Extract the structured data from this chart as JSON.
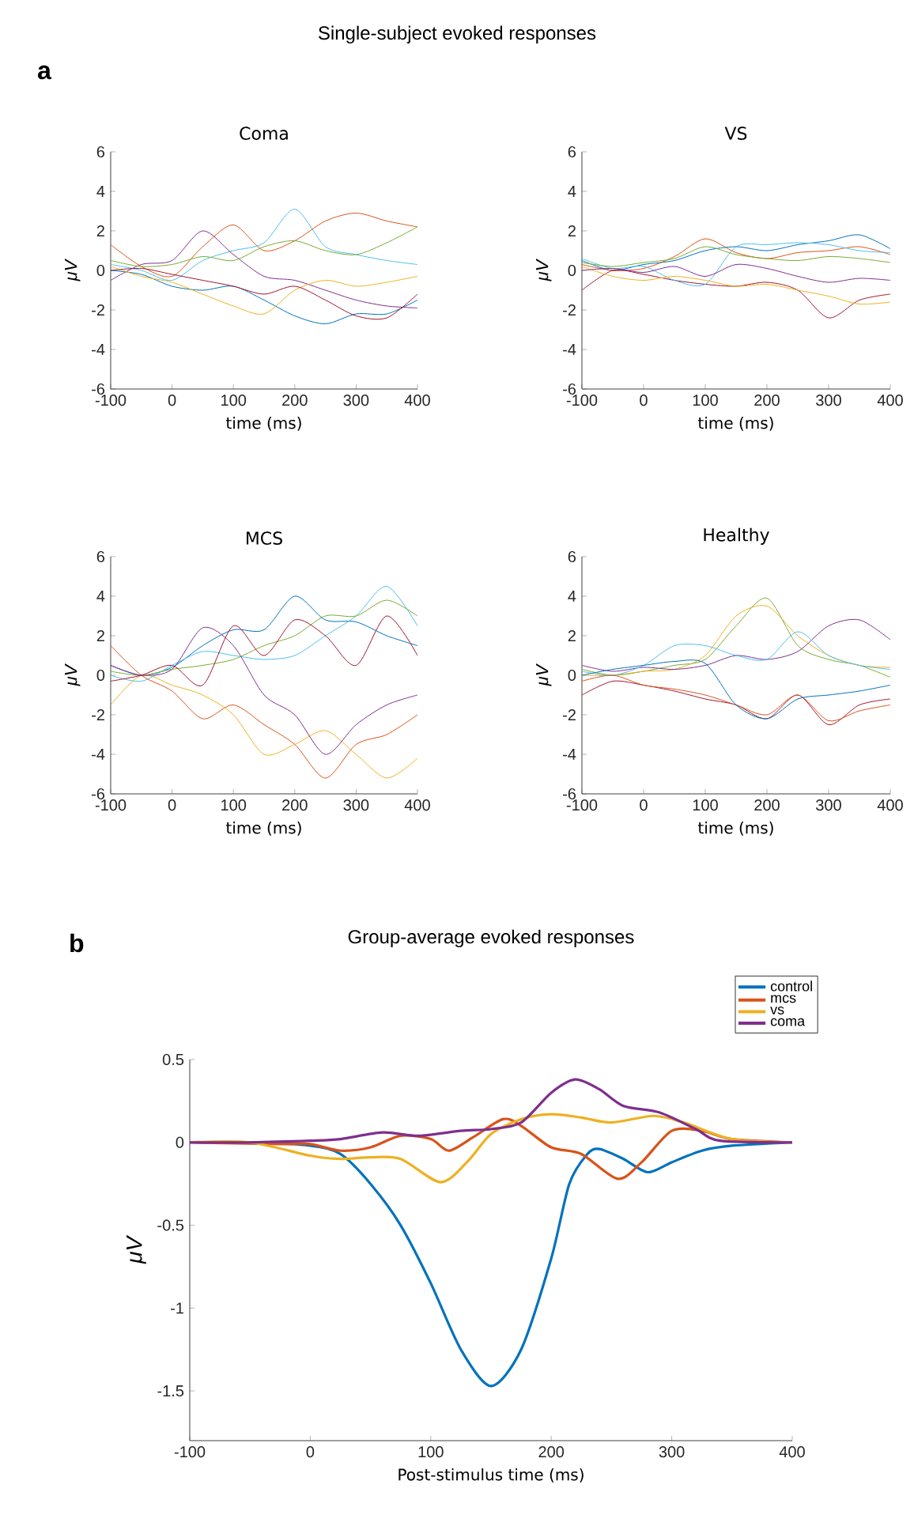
{
  "chart_data": [
    {
      "type": "line",
      "title": "Coma",
      "xlabel": "time (ms)",
      "ylabel": "μV",
      "annotations": [
        "Single-subject evoked responses",
        "a"
      ],
      "x": [
        -100,
        -50,
        0,
        50,
        100,
        150,
        200,
        250,
        300,
        350,
        400
      ],
      "xlim": [
        -100,
        400
      ],
      "ylim": [
        -6,
        6
      ],
      "xticks": [
        -100,
        0,
        100,
        200,
        300,
        400
      ],
      "yticks": [
        -6,
        -4,
        -2,
        0,
        2,
        4,
        6
      ],
      "series": [
        {
          "color": "#d95319",
          "values": [
            1.3,
            0.2,
            -0.3,
            1.2,
            2.3,
            1.0,
            1.5,
            2.5,
            2.9,
            2.5,
            2.2
          ]
        },
        {
          "color": "#4dbeee",
          "values": [
            0.3,
            0,
            -0.5,
            0.5,
            1.0,
            1.4,
            3.1,
            1.2,
            0.8,
            0.5,
            0.3
          ]
        },
        {
          "color": "#0072bd",
          "values": [
            0,
            -0.2,
            -0.8,
            -1.0,
            -0.8,
            -1.5,
            -2.3,
            -2.7,
            -2.2,
            -2.2,
            -1.5
          ]
        },
        {
          "color": "#7e2f8e",
          "values": [
            -0.5,
            0.3,
            0.5,
            2.0,
            0.8,
            -0.3,
            -0.5,
            -1.0,
            -1.5,
            -1.8,
            -1.9
          ]
        },
        {
          "color": "#edb120",
          "values": [
            0.2,
            -0.3,
            -0.6,
            -1.2,
            -1.8,
            -2.2,
            -1.0,
            -0.5,
            -0.8,
            -0.6,
            -0.3
          ]
        },
        {
          "color": "#77ac30",
          "values": [
            0.5,
            0.2,
            0.3,
            0.7,
            0.5,
            1.2,
            1.5,
            1.0,
            0.8,
            1.4,
            2.2
          ]
        },
        {
          "color": "#a2142f",
          "values": [
            0,
            0.1,
            -0.2,
            -0.5,
            -0.8,
            -1.2,
            -0.8,
            -1.5,
            -2.3,
            -2.4,
            -1.2
          ]
        }
      ]
    },
    {
      "type": "line",
      "title": "VS",
      "xlabel": "time (ms)",
      "ylabel": "μV",
      "x": [
        -100,
        -50,
        0,
        50,
        100,
        150,
        200,
        250,
        300,
        350,
        400
      ],
      "xlim": [
        -100,
        400
      ],
      "ylim": [
        -6,
        6
      ],
      "xticks": [
        -100,
        0,
        100,
        200,
        300,
        400
      ],
      "yticks": [
        -6,
        -4,
        -2,
        0,
        2,
        4,
        6
      ],
      "series": [
        {
          "color": "#0072bd",
          "values": [
            0.5,
            0,
            0.3,
            0.5,
            1.0,
            1.2,
            1.0,
            1.3,
            1.5,
            1.8,
            1.1
          ]
        },
        {
          "color": "#d95319",
          "values": [
            0.3,
            0,
            0.1,
            0.7,
            1.6,
            0.9,
            0.6,
            0.9,
            1.0,
            1.2,
            0.8
          ]
        },
        {
          "color": "#a2142f",
          "values": [
            -1.0,
            0,
            -0.2,
            -0.5,
            -0.7,
            -0.8,
            -0.6,
            -1.0,
            -2.4,
            -1.5,
            -1.2
          ]
        },
        {
          "color": "#4dbeee",
          "values": [
            0.6,
            0.1,
            0.2,
            -0.5,
            -0.7,
            1.2,
            1.3,
            1.4,
            1.3,
            1.0,
            0.9
          ]
        },
        {
          "color": "#edb120",
          "values": [
            0.2,
            -0.3,
            -0.5,
            -0.3,
            -0.5,
            -0.8,
            -0.7,
            -1.0,
            -1.3,
            -1.7,
            -1.6
          ]
        },
        {
          "color": "#77ac30",
          "values": [
            0.4,
            0.2,
            0.4,
            0.6,
            1.2,
            0.8,
            0.6,
            0.5,
            0.7,
            0.6,
            0.4
          ]
        },
        {
          "color": "#7e2f8e",
          "values": [
            0,
            0.1,
            -0.1,
            0.2,
            -0.3,
            0.3,
            0.1,
            -0.3,
            -0.6,
            -0.4,
            -0.5
          ]
        }
      ]
    },
    {
      "type": "line",
      "title": "MCS",
      "xlabel": "time (ms)",
      "ylabel": "μV",
      "x": [
        -100,
        -50,
        0,
        50,
        100,
        150,
        200,
        250,
        300,
        350,
        400
      ],
      "xlim": [
        -100,
        400
      ],
      "ylim": [
        -6,
        6
      ],
      "xticks": [
        -100,
        0,
        100,
        200,
        300,
        400
      ],
      "yticks": [
        -6,
        -4,
        -2,
        0,
        2,
        4,
        6
      ],
      "series": [
        {
          "color": "#0072bd",
          "values": [
            0.5,
            0,
            0.4,
            1.5,
            2.3,
            2.3,
            4.0,
            2.8,
            2.7,
            2.0,
            1.5
          ]
        },
        {
          "color": "#4dbeee",
          "values": [
            0,
            -0.3,
            0.5,
            1.2,
            1.0,
            0.8,
            1.0,
            2.0,
            3.0,
            4.5,
            2.5
          ]
        },
        {
          "color": "#77ac30",
          "values": [
            0.2,
            0,
            0.3,
            0.5,
            0.8,
            1.5,
            2.0,
            3.0,
            3.0,
            3.8,
            3.0
          ]
        },
        {
          "color": "#d95319",
          "values": [
            1.5,
            0,
            -0.8,
            -2.2,
            -1.5,
            -2.5,
            -3.5,
            -5.2,
            -3.5,
            -3.0,
            -2.0
          ]
        },
        {
          "color": "#edb120",
          "values": [
            -1.5,
            0,
            -0.5,
            -1.0,
            -2.0,
            -4.0,
            -3.5,
            -2.8,
            -4.0,
            -5.2,
            -4.2
          ]
        },
        {
          "color": "#7e2f8e",
          "values": [
            0.5,
            0,
            0.3,
            2.4,
            1.5,
            -1.0,
            -2.0,
            -4.0,
            -2.5,
            -1.5,
            -1.0
          ]
        },
        {
          "color": "#a2142f",
          "values": [
            -0.3,
            0,
            0.5,
            -0.5,
            2.5,
            1.0,
            2.8,
            2.0,
            0.5,
            3.0,
            1.0
          ]
        }
      ]
    },
    {
      "type": "line",
      "title": "Healthy",
      "xlabel": "time (ms)",
      "ylabel": "μV",
      "x": [
        -100,
        -50,
        0,
        50,
        100,
        150,
        200,
        250,
        300,
        350,
        400
      ],
      "xlim": [
        -100,
        400
      ],
      "ylim": [
        -6,
        6
      ],
      "xticks": [
        -100,
        0,
        100,
        200,
        300,
        400
      ],
      "yticks": [
        -6,
        -4,
        -2,
        0,
        2,
        4,
        6
      ],
      "series": [
        {
          "color": "#77ac30",
          "values": [
            0.3,
            0,
            0.2,
            0.5,
            0.8,
            2.5,
            3.9,
            1.5,
            0.8,
            0.5,
            -0.1
          ]
        },
        {
          "color": "#edb120",
          "values": [
            0,
            0,
            0.2,
            0.3,
            1.0,
            3.0,
            3.5,
            2.0,
            1.0,
            0.5,
            0.4
          ]
        },
        {
          "color": "#7e2f8e",
          "values": [
            0.5,
            0.2,
            0.4,
            0.3,
            0.5,
            1.0,
            0.8,
            1.2,
            2.5,
            2.8,
            1.8
          ]
        },
        {
          "color": "#4dbeee",
          "values": [
            0.2,
            0,
            0.5,
            1.5,
            1.5,
            1.0,
            0.8,
            2.2,
            1.0,
            0.5,
            0.3
          ]
        },
        {
          "color": "#a2142f",
          "values": [
            -1.0,
            -0.3,
            -0.5,
            -0.8,
            -1.2,
            -1.5,
            -2.2,
            -1.0,
            -2.5,
            -1.5,
            -1.2
          ]
        },
        {
          "color": "#d95319",
          "values": [
            -0.3,
            0,
            -0.5,
            -0.7,
            -1.0,
            -1.5,
            -2.0,
            -1.0,
            -2.3,
            -1.8,
            -1.5
          ]
        },
        {
          "color": "#0072bd",
          "values": [
            0,
            0.3,
            0.5,
            0.7,
            0.6,
            -1.5,
            -2.2,
            -1.2,
            -1.0,
            -0.8,
            -0.5
          ]
        }
      ]
    },
    {
      "type": "line",
      "title": "Group-average evoked responses",
      "xlabel": "Post-stimulus time (ms)",
      "ylabel": "μV",
      "annotations": [
        "b"
      ],
      "xlim": [
        -100,
        400
      ],
      "ylim": [
        -1.8,
        0.5
      ],
      "xticks": [
        -100,
        0,
        100,
        200,
        300,
        400
      ],
      "yticks": [
        -1.5,
        -1,
        -0.5,
        0,
        0.5
      ],
      "legend": "top right",
      "series": [
        {
          "name": "control",
          "color": "#0072bd",
          "x": [
            -100,
            -50,
            0,
            25,
            50,
            75,
            100,
            125,
            150,
            175,
            200,
            215,
            230,
            240,
            260,
            280,
            300,
            325,
            350,
            400
          ],
          "values": [
            0,
            0,
            -0.02,
            -0.07,
            -0.25,
            -0.5,
            -0.85,
            -1.25,
            -1.47,
            -1.25,
            -0.7,
            -0.25,
            -0.07,
            -0.04,
            -0.1,
            -0.18,
            -0.12,
            -0.05,
            -0.02,
            0
          ]
        },
        {
          "name": "mcs",
          "color": "#d95319",
          "x": [
            -100,
            -25,
            0,
            25,
            50,
            75,
            100,
            115,
            135,
            160,
            175,
            200,
            225,
            255,
            275,
            300,
            325,
            350,
            400
          ],
          "values": [
            0,
            -0.01,
            -0.01,
            -0.05,
            -0.03,
            0.04,
            0.02,
            -0.05,
            0.03,
            0.14,
            0.1,
            -0.03,
            -0.07,
            -0.22,
            -0.12,
            0.07,
            0.07,
            0.02,
            0
          ]
        },
        {
          "name": "vs",
          "color": "#edb120",
          "x": [
            -100,
            -50,
            0,
            25,
            50,
            75,
            108,
            130,
            150,
            175,
            200,
            225,
            250,
            285,
            310,
            350,
            400
          ],
          "values": [
            0,
            0,
            -0.08,
            -0.1,
            -0.09,
            -0.1,
            -0.24,
            -0.12,
            0.05,
            0.14,
            0.17,
            0.15,
            0.12,
            0.16,
            0.12,
            0.02,
            0
          ]
        },
        {
          "name": "coma",
          "color": "#7e2f8e",
          "x": [
            -100,
            -50,
            0,
            25,
            60,
            90,
            125,
            150,
            175,
            200,
            220,
            240,
            260,
            290,
            320,
            340,
            400
          ],
          "values": [
            0,
            0,
            0.01,
            0.02,
            0.06,
            0.04,
            0.07,
            0.08,
            0.12,
            0.3,
            0.38,
            0.32,
            0.22,
            0.18,
            0.08,
            0.01,
            0
          ]
        }
      ]
    }
  ]
}
